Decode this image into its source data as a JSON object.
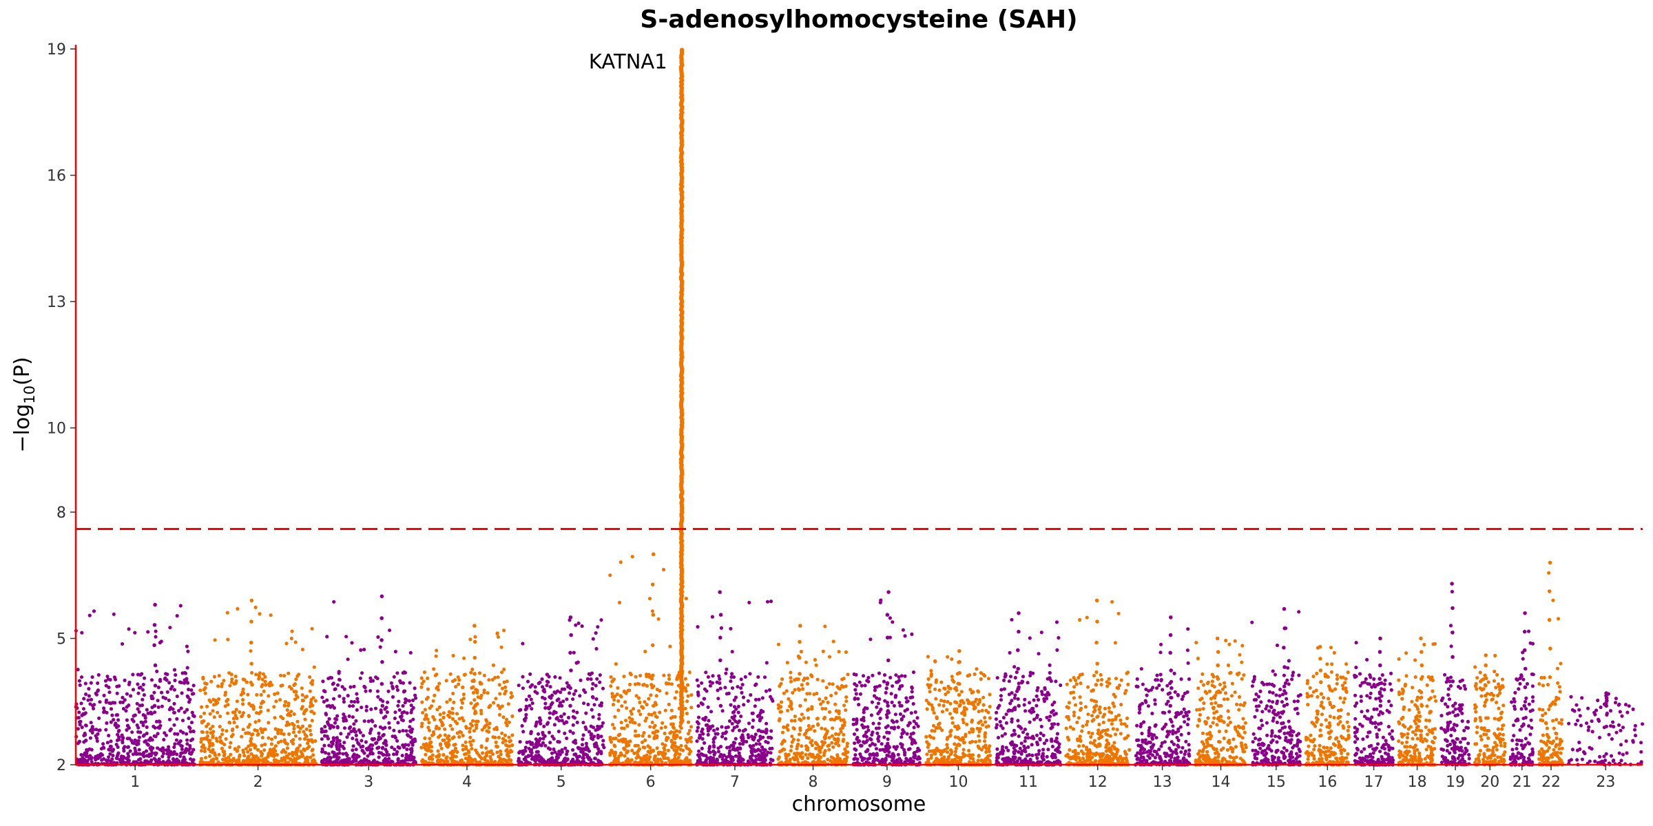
{
  "chart_data": {
    "type": "scatter",
    "subtype": "manhattan",
    "title": "S-adenosylhomocysteine (SAH)",
    "xlabel": "chromosome",
    "ylabel": "−log10(P)",
    "ylim": [
      2,
      19.1
    ],
    "yticks": [
      2,
      5,
      8,
      10,
      13,
      16,
      19
    ],
    "significance_threshold": 7.6,
    "colors": {
      "odd": "#8B008B",
      "even": "#EE7600",
      "axis": "#FF0000",
      "threshold": "#FF0000"
    },
    "grid": false,
    "legend": "none",
    "chromosomes": [
      {
        "label": "1",
        "size": 249,
        "peak": 5.8
      },
      {
        "label": "2",
        "size": 243,
        "peak": 5.9
      },
      {
        "label": "3",
        "size": 198,
        "peak": 6.0
      },
      {
        "label": "4",
        "size": 191,
        "peak": 5.3
      },
      {
        "label": "5",
        "size": 181,
        "peak": 5.5
      },
      {
        "label": "6",
        "size": 171,
        "peak": 7.0
      },
      {
        "label": "7",
        "size": 159,
        "peak": 6.1
      },
      {
        "label": "8",
        "size": 146,
        "peak": 5.3
      },
      {
        "label": "9",
        "size": 141,
        "peak": 6.1
      },
      {
        "label": "10",
        "size": 135,
        "peak": 4.7
      },
      {
        "label": "11",
        "size": 135,
        "peak": 5.6
      },
      {
        "label": "12",
        "size": 133,
        "peak": 5.9
      },
      {
        "label": "13",
        "size": 115,
        "peak": 5.5
      },
      {
        "label": "14",
        "size": 107,
        "peak": 5.0
      },
      {
        "label": "15",
        "size": 102,
        "peak": 5.7
      },
      {
        "label": "16",
        "size": 90,
        "peak": 4.8
      },
      {
        "label": "17",
        "size": 81,
        "peak": 5.0
      },
      {
        "label": "18",
        "size": 78,
        "peak": 5.0
      },
      {
        "label": "19",
        "size": 59,
        "peak": 6.3
      },
      {
        "label": "20",
        "size": 63,
        "peak": 4.6
      },
      {
        "label": "21",
        "size": 48,
        "peak": 5.6
      },
      {
        "label": "22",
        "size": 51,
        "peak": 6.8
      },
      {
        "label": "23",
        "size": 155,
        "peak": 3.7
      }
    ],
    "lead_locus": {
      "chromosome": "6",
      "position_fraction": 0.88,
      "max_log10p": 19.0,
      "gene": "KATNA1"
    },
    "annotations": [
      {
        "text": "KATNA1",
        "chromosome": "6",
        "y": 18.7
      }
    ]
  }
}
